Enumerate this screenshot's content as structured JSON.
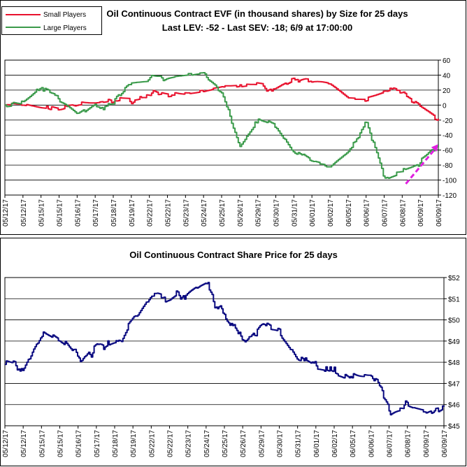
{
  "chart_data": [
    {
      "type": "line",
      "title": "Oil Continuous Contract EVF (in thousand shares) by Size for 25 days",
      "subtitle": "Last LEV: -52 - Last SEV: -18; 6/9 at 17:00:00",
      "legend_position": "top-left",
      "ylim": [
        -120,
        60
      ],
      "yticks": [
        -120,
        -100,
        -80,
        -60,
        -40,
        -20,
        0,
        20,
        40,
        60
      ],
      "ytick_labels": [
        "-120",
        "-100",
        "-80",
        "-60",
        "-40",
        "-20",
        "0",
        "20",
        "40",
        "60"
      ],
      "grid": true,
      "x_labels": [
        "05/12/17",
        "05/12/17",
        "05/15/17",
        "05/15/17",
        "05/16/17",
        "05/17/17",
        "05/18/17",
        "05/19/17",
        "05/22/17",
        "05/22/17",
        "05/23/17",
        "05/24/17",
        "05/25/17",
        "05/26/17",
        "05/29/17",
        "05/30/17",
        "05/31/17",
        "06/01/17",
        "06/02/17",
        "06/05/17",
        "06/06/17",
        "06/07/17",
        "06/08/17",
        "06/09/17",
        "06/09/17"
      ],
      "series": [
        {
          "name": "Small Players",
          "color": "#e8112d",
          "x": [
            0,
            1,
            2,
            3,
            4,
            5,
            6,
            7,
            8,
            9,
            10,
            11,
            12,
            13,
            14,
            15,
            16,
            17,
            18,
            19,
            20,
            21,
            22,
            23,
            24
          ],
          "values": [
            0,
            0,
            -4,
            -6,
            0,
            2,
            6,
            8,
            10,
            12,
            13,
            18,
            24,
            26,
            27,
            27,
            35,
            38,
            30,
            10,
            8,
            17,
            18,
            0,
            -18
          ]
        },
        {
          "name": "Large Players",
          "color": "#3a9a4a",
          "x": [
            0,
            1,
            2,
            3,
            4,
            5,
            6,
            7,
            8,
            9,
            10,
            11,
            12,
            13,
            14,
            15,
            16,
            17,
            18,
            19,
            20,
            21,
            22,
            23,
            24
          ],
          "values": [
            0,
            0,
            24,
            14,
            -10,
            3,
            3,
            30,
            32,
            38,
            40,
            43,
            20,
            -55,
            -22,
            -28,
            -65,
            -75,
            -80,
            -62,
            -24,
            -96,
            -90,
            -78,
            -52
          ]
        }
      ],
      "annotation": {
        "type": "trend-arrow",
        "color": "#e020e0",
        "from": [
          22.2,
          -105
        ],
        "to": [
          24,
          -52
        ]
      }
    },
    {
      "type": "line",
      "title": "Oil Continuous Contract Share Price for 25 days",
      "ylim": [
        45,
        52
      ],
      "yticks": [
        45,
        46,
        47,
        48,
        49,
        50,
        51,
        52
      ],
      "ytick_labels": [
        "$45",
        "$46",
        "$47",
        "$48",
        "$49",
        "$50",
        "$51",
        "$52"
      ],
      "grid": true,
      "x_labels": [
        "05/12/17",
        "05/12/17",
        "05/15/17",
        "05/15/17",
        "05/16/17",
        "05/17/17",
        "05/18/17",
        "05/19/17",
        "05/22/17",
        "05/22/17",
        "05/23/17",
        "05/24/17",
        "05/25/17",
        "05/26/17",
        "05/29/17",
        "05/30/17",
        "05/31/17",
        "06/01/17",
        "06/02/17",
        "06/05/17",
        "06/06/17",
        "06/07/17",
        "06/08/17",
        "06/09/17",
        "06/09/17"
      ],
      "series": [
        {
          "color": "#0a0a80",
          "x": [
            0,
            1,
            2,
            3,
            4,
            5,
            6,
            7,
            8,
            9,
            10,
            11,
            12,
            13,
            14,
            15,
            16,
            17,
            18,
            19,
            20,
            21,
            22,
            23,
            24
          ],
          "values": [
            47.9,
            47.9,
            49.3,
            49.0,
            48.2,
            48.9,
            49.0,
            50.1,
            51.2,
            51.1,
            51.5,
            51.8,
            50.2,
            48.7,
            49.8,
            49.5,
            48.1,
            47.8,
            47.5,
            47.1,
            47.3,
            45.9,
            45.8,
            45.7,
            45.9
          ]
        }
      ]
    }
  ]
}
